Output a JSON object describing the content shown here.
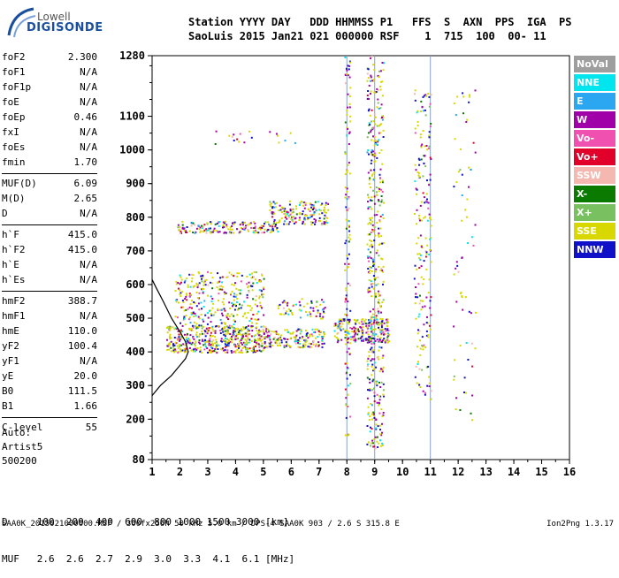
{
  "logo": {
    "line1": "Lowell",
    "line2": "DIGISONDE"
  },
  "header": {
    "line1": "Station YYYY DAY   DDD HHMMSS P1   FFS  S  AXN  PPS  IGA  PS",
    "line2": "SaoLuis 2015 Jan21 021 000000 RSF    1  715  100  00- 11"
  },
  "parameters": {
    "group1": [
      {
        "key": "foF2",
        "value": "2.300"
      },
      {
        "key": "foF1",
        "value": "N/A"
      },
      {
        "key": "foF1p",
        "value": "N/A"
      },
      {
        "key": "foE",
        "value": "N/A"
      },
      {
        "key": "foEp",
        "value": "0.46"
      },
      {
        "key": "fxI",
        "value": "N/A"
      },
      {
        "key": "foEs",
        "value": "N/A"
      },
      {
        "key": "fmin",
        "value": "1.70"
      }
    ],
    "group2": [
      {
        "key": "MUF(D)",
        "value": "6.09"
      },
      {
        "key": "M(D)",
        "value": "2.65"
      },
      {
        "key": "D",
        "value": "N/A"
      }
    ],
    "group3": [
      {
        "key": "h`F",
        "value": "415.0"
      },
      {
        "key": "h`F2",
        "value": "415.0"
      },
      {
        "key": "h`E",
        "value": "N/A"
      },
      {
        "key": "h`Es",
        "value": "N/A"
      }
    ],
    "group4": [
      {
        "key": "hmF2",
        "value": "388.7"
      },
      {
        "key": "hmF1",
        "value": "N/A"
      },
      {
        "key": "hmE",
        "value": "110.0"
      },
      {
        "key": "yF2",
        "value": "100.4"
      },
      {
        "key": "yF1",
        "value": "N/A"
      },
      {
        "key": "yE",
        "value": "20.0"
      },
      {
        "key": "B0",
        "value": "111.5"
      },
      {
        "key": "B1",
        "value": "1.66"
      }
    ],
    "group5": [
      {
        "key": "C-level",
        "value": "55"
      }
    ]
  },
  "auto": {
    "line1": "Auto:",
    "line2": "Artist5",
    "line3": "500200"
  },
  "legend": [
    {
      "label": "NoVal",
      "color": "#9e9e9e"
    },
    {
      "label": "NNE",
      "color": "#00e5ee"
    },
    {
      "label": "E",
      "color": "#2aa7f0"
    },
    {
      "label": "W",
      "color": "#a000a8"
    },
    {
      "label": "Vo-",
      "color": "#f050b0"
    },
    {
      "label": "Vo+",
      "color": "#e0002a"
    },
    {
      "label": "SSW",
      "color": "#f4b8b0"
    },
    {
      "label": "X-",
      "color": "#0a7a00"
    },
    {
      "label": "X+",
      "color": "#78c060"
    },
    {
      "label": "SSE",
      "color": "#d8d800"
    },
    {
      "label": "NNW",
      "color": "#1010c8"
    }
  ],
  "chart_data": {
    "type": "scatter",
    "title": "",
    "xlabel": "",
    "ylabel": "",
    "xlim": [
      1,
      16
    ],
    "ylim": [
      80,
      1280
    ],
    "x_ticks": [
      "1",
      "2",
      "3",
      "4",
      "5",
      "6",
      "7",
      "8",
      "9",
      "10",
      "11",
      "12",
      "13",
      "14",
      "15",
      "16"
    ],
    "y_ticks": [
      "80",
      "200",
      "300",
      "400",
      "500",
      "600",
      "700",
      "800",
      "900",
      "1000",
      "1100",
      "1280"
    ],
    "profile_curve": [
      {
        "x": 1.0,
        "y": 270
      },
      {
        "x": 1.3,
        "y": 300
      },
      {
        "x": 1.7,
        "y": 330
      },
      {
        "x": 2.0,
        "y": 360
      },
      {
        "x": 2.2,
        "y": 380
      },
      {
        "x": 2.3,
        "y": 400
      },
      {
        "x": 2.2,
        "y": 430
      },
      {
        "x": 2.0,
        "y": 460
      },
      {
        "x": 1.7,
        "y": 500
      },
      {
        "x": 1.4,
        "y": 550
      },
      {
        "x": 1.15,
        "y": 590
      },
      {
        "x": 1.0,
        "y": 615
      }
    ],
    "echo_clusters": [
      {
        "xmin": 1.5,
        "xmax": 5.2,
        "ymin": 400,
        "ymax": 480,
        "density": 0.55
      },
      {
        "xmin": 5.2,
        "xmax": 7.2,
        "ymin": 415,
        "ymax": 470,
        "density": 0.45
      },
      {
        "xmin": 7.5,
        "xmax": 9.5,
        "ymin": 430,
        "ymax": 500,
        "density": 0.55
      },
      {
        "xmin": 1.8,
        "xmax": 5.0,
        "ymin": 480,
        "ymax": 640,
        "density": 0.2
      },
      {
        "xmin": 5.5,
        "xmax": 7.2,
        "ymin": 500,
        "ymax": 560,
        "density": 0.2
      },
      {
        "xmin": 1.9,
        "xmax": 5.5,
        "ymin": 755,
        "ymax": 790,
        "density": 0.45
      },
      {
        "xmin": 5.2,
        "xmax": 7.3,
        "ymin": 780,
        "ymax": 850,
        "density": 0.4
      },
      {
        "xmin": 3.0,
        "xmax": 6.2,
        "ymin": 1020,
        "ymax": 1060,
        "density": 0.05
      },
      {
        "xmin": 7.9,
        "xmax": 8.1,
        "ymin": 150,
        "ymax": 1280,
        "density": 0.18
      },
      {
        "xmin": 8.7,
        "xmax": 9.3,
        "ymin": 110,
        "ymax": 1280,
        "density": 0.22
      },
      {
        "xmin": 10.4,
        "xmax": 11.0,
        "ymin": 260,
        "ymax": 1180,
        "density": 0.12
      },
      {
        "xmin": 11.8,
        "xmax": 12.6,
        "ymin": 200,
        "ymax": 1180,
        "density": 0.03
      }
    ],
    "min_frequencies_MHz": [
      "2.6",
      "2.6",
      "2.7",
      "2.9",
      "3.0",
      "3.3",
      "4.1",
      "6.1"
    ]
  },
  "bottom_table": {
    "row1": "D     100  200  400  600  800 1000 1500 3000 [km]",
    "row2": "MUF   2.6  2.6  2.7  2.9  3.0  3.3  4.1  6.1 [MHz]"
  },
  "footer": {
    "left": "SAA0K_2015021000000.RSF / 300fx256h 50 kHz 5.0 km / DPS-4 SAA0K 903 / 2.6 S 315.8 E",
    "right": "Ion2Png 1.3.17"
  }
}
